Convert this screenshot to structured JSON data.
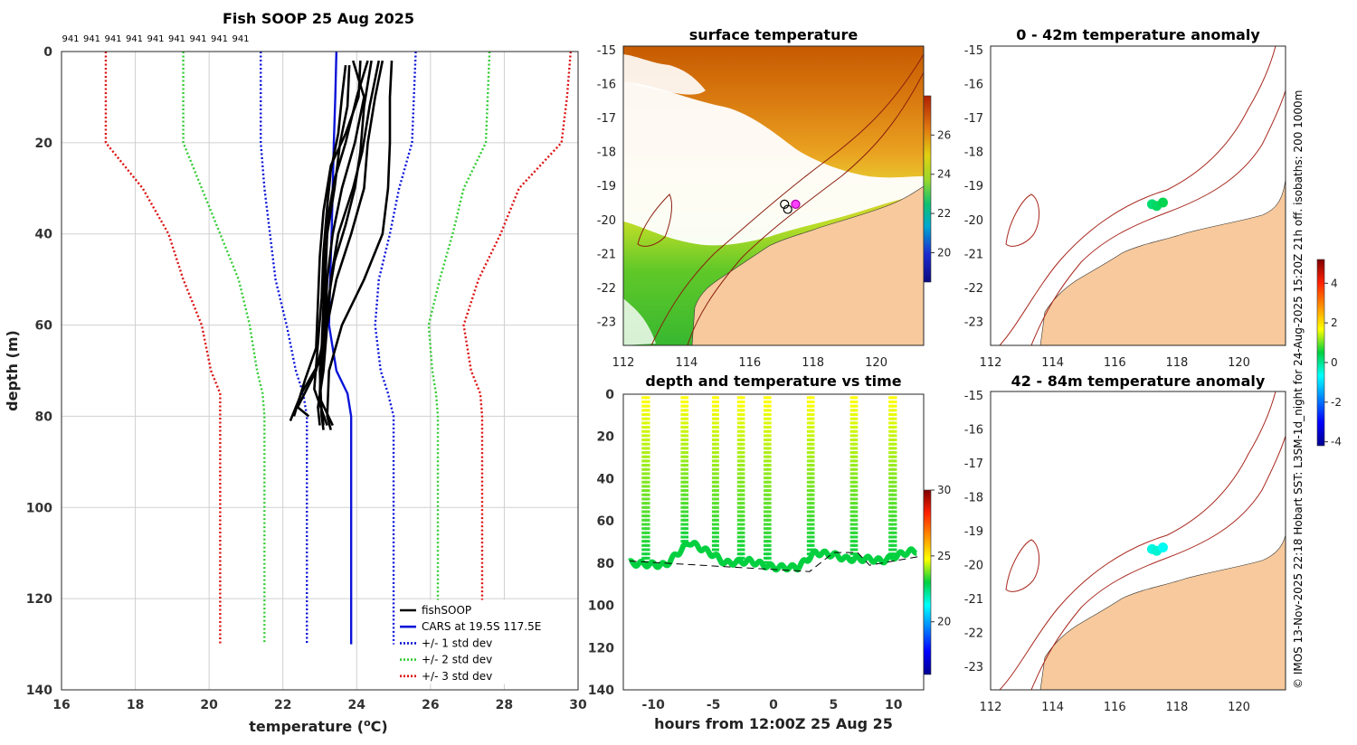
{
  "colors": {
    "fish": "#000000",
    "cars": "#0a14d8",
    "std1": "#0a14d8",
    "std2": "#33cc33",
    "std3": "#dd1111",
    "land": "#f7c99c",
    "isobath": "#a8281e"
  },
  "credit": "© IMOS 13-Nov-2025 22:18 Hobart SST: L3SM-1d_night for 24-Aug-2025  15:20Z 21h off. isobaths: 200  1000m",
  "chart_data": [
    {
      "id": "profile",
      "type": "line",
      "title": "Fish SOOP 25 Aug 2025",
      "xlabel": "temperature (",
      "xlabel_sup": "o",
      "xlabel_tail": "C)",
      "ylabel": "depth (m)",
      "xlim": [
        16,
        30
      ],
      "ylim": [
        0,
        140
      ],
      "y_reversed": true,
      "xticks": [
        16,
        18,
        20,
        22,
        24,
        26,
        28,
        30
      ],
      "yticks": [
        0,
        20,
        40,
        60,
        80,
        100,
        120,
        140
      ],
      "grid": true,
      "cast_ids": [
        "941",
        "941",
        "941",
        "941",
        "941",
        "941",
        "941",
        "941",
        "941"
      ],
      "legend_position": "bottom-right",
      "legend": [
        {
          "label": "fishSOOP",
          "style": "solid",
          "color": "#000000"
        },
        {
          "label": "CARS at 19.5S 117.5E",
          "style": "solid",
          "color": "#0a14d8"
        },
        {
          "label": "+/- 1 std dev",
          "style": "dotted",
          "color": "#0a14d8"
        },
        {
          "label": "+/- 2 std dev",
          "style": "dotted",
          "color": "#33cc33"
        },
        {
          "label": "+/- 3 std dev",
          "style": "dotted",
          "color": "#dd1111"
        }
      ],
      "depths": [
        0,
        10,
        20,
        30,
        40,
        50,
        60,
        70,
        75,
        80,
        130
      ],
      "cars_mean": [
        23.45,
        23.42,
        23.38,
        23.35,
        23.32,
        23.28,
        23.25,
        23.45,
        23.75,
        23.85,
        23.85
      ],
      "std_lines": [
        {
          "label": "-3",
          "color": "#dd1111",
          "values": [
            17.2,
            17.2,
            17.2,
            18.2,
            18.9,
            19.3,
            19.8,
            20.05,
            20.3,
            20.3,
            20.3
          ]
        },
        {
          "label": "+3",
          "color": "#dd1111",
          "values": [
            29.8,
            29.7,
            29.55,
            28.4,
            27.9,
            27.3,
            26.9,
            27.1,
            27.35,
            27.4,
            27.4
          ]
        },
        {
          "label": "-2",
          "color": "#33cc33",
          "values": [
            19.3,
            19.3,
            19.3,
            19.8,
            20.3,
            20.8,
            21.1,
            21.3,
            21.45,
            21.5,
            21.5
          ]
        },
        {
          "label": "+2",
          "color": "#33cc33",
          "values": [
            27.6,
            27.55,
            27.5,
            26.9,
            26.6,
            26.25,
            25.95,
            26.05,
            26.15,
            26.2,
            26.2
          ]
        },
        {
          "label": "-1",
          "color": "#0a14d8",
          "values": [
            21.4,
            21.4,
            21.4,
            21.5,
            21.65,
            21.8,
            22.1,
            22.35,
            22.55,
            22.65,
            22.65
          ]
        },
        {
          "label": "+1",
          "color": "#0a14d8",
          "values": [
            25.6,
            25.55,
            25.5,
            25.15,
            24.9,
            24.6,
            24.5,
            24.65,
            24.85,
            25.0,
            25.0
          ]
        }
      ],
      "fish_profiles": [
        {
          "depths": [
            2,
            10,
            20,
            30,
            40,
            50,
            60,
            70,
            80,
            83
          ],
          "temps": [
            24.95,
            24.9,
            24.9,
            24.85,
            24.7,
            24.2,
            23.6,
            23.25,
            23.2,
            23.3
          ]
        },
        {
          "depths": [
            2,
            10,
            20,
            28,
            35,
            45,
            55,
            65,
            75,
            82
          ],
          "temps": [
            24.3,
            24.0,
            23.7,
            23.4,
            23.25,
            23.15,
            23.1,
            23.05,
            23.0,
            23.1
          ]
        },
        {
          "depths": [
            2,
            12,
            22,
            30,
            40,
            50,
            60,
            70,
            78,
            82
          ],
          "temps": [
            24.6,
            24.35,
            24.15,
            23.9,
            23.5,
            23.3,
            23.2,
            23.1,
            22.95,
            23.0
          ]
        },
        {
          "depths": [
            3,
            12,
            20,
            30,
            40,
            50,
            60,
            70,
            80,
            83
          ],
          "temps": [
            23.8,
            23.75,
            23.55,
            23.4,
            23.2,
            23.15,
            23.1,
            23.0,
            23.05,
            23.1
          ]
        },
        {
          "depths": [
            2,
            10,
            18,
            25,
            35,
            45,
            55,
            65,
            72,
            80
          ],
          "temps": [
            24.1,
            24.05,
            23.7,
            23.3,
            23.1,
            23.0,
            22.95,
            22.9,
            22.6,
            22.3
          ]
        },
        {
          "depths": [
            2,
            10,
            20,
            30,
            40,
            50,
            60,
            68,
            75,
            81
          ],
          "temps": [
            23.9,
            24.2,
            23.95,
            23.6,
            23.35,
            23.2,
            23.15,
            23.0,
            22.5,
            22.2
          ]
        },
        {
          "depths": [
            3,
            10,
            18,
            26,
            34,
            44,
            54,
            64,
            74,
            82
          ],
          "temps": [
            23.7,
            23.6,
            23.5,
            23.3,
            23.2,
            23.1,
            23.05,
            22.95,
            22.85,
            23.2
          ]
        },
        {
          "depths": [
            2,
            12,
            22,
            30,
            38,
            46,
            56,
            66,
            76,
            82
          ],
          "temps": [
            24.4,
            24.2,
            24.1,
            23.95,
            23.7,
            23.4,
            23.2,
            23.1,
            23.0,
            23.35
          ]
        },
        {
          "depths": [
            2,
            10,
            20,
            30,
            40,
            50,
            60,
            70,
            78,
            80
          ],
          "temps": [
            24.7,
            24.5,
            24.3,
            24.2,
            23.85,
            23.45,
            23.2,
            22.9,
            22.4,
            22.7
          ]
        }
      ]
    },
    {
      "id": "sst",
      "type": "heatmap",
      "title": "surface temperature",
      "xlim": [
        112,
        121.5
      ],
      "ylim": [
        -23.7,
        -14.9
      ],
      "xticks": [
        112,
        114,
        116,
        118,
        120
      ],
      "yticks": [
        -15,
        -16,
        -17,
        -18,
        -19,
        -20,
        -21,
        -22,
        -23
      ],
      "colorbar": {
        "min": 18.5,
        "max": 28,
        "ticks": [
          20,
          22,
          24,
          26
        ]
      },
      "cast_markers": [
        {
          "lon": 117.1,
          "lat": -19.55
        },
        {
          "lon": 117.2,
          "lat": -19.7
        },
        {
          "lon": 117.45,
          "lat": -19.55
        }
      ]
    },
    {
      "id": "timeseries",
      "type": "scatter",
      "title": "depth and temperature vs time",
      "xlabel": "hours from 12:00Z 25 Aug 25",
      "xlim": [
        -12.5,
        12.5
      ],
      "ylim": [
        0,
        140
      ],
      "y_reversed": true,
      "xticks": [
        -10,
        -5,
        0,
        5,
        10
      ],
      "yticks": [
        0,
        20,
        40,
        60,
        80,
        100,
        120,
        140
      ],
      "colorbar": {
        "min": 16,
        "max": 30,
        "ticks": [
          20,
          25,
          30
        ]
      },
      "dive_hours": [
        -10.75,
        -10.5,
        -7.5,
        -7.3,
        -4.9,
        -4.75,
        -2.8,
        -2.6,
        -0.6,
        -0.4,
        3.0,
        3.2,
        6.6,
        6.8,
        9.8,
        10.05
      ],
      "bottom_depth": [
        [
          -12,
          80
        ],
        [
          -9,
          81
        ],
        [
          -7,
          70
        ],
        [
          -6,
          73
        ],
        [
          -5,
          76
        ],
        [
          -4,
          80
        ],
        [
          -2,
          79
        ],
        [
          0,
          82
        ],
        [
          2,
          82
        ],
        [
          3.5,
          75
        ],
        [
          5,
          76
        ],
        [
          6,
          78
        ],
        [
          8,
          78
        ],
        [
          9,
          79
        ],
        [
          11,
          75
        ],
        [
          12,
          74
        ]
      ],
      "seafloor_line": [
        [
          -12,
          79
        ],
        [
          3,
          84
        ],
        [
          5,
          75
        ],
        [
          7,
          75
        ],
        [
          8,
          81
        ],
        [
          12,
          77
        ]
      ]
    },
    {
      "id": "anom_upper",
      "type": "scatter",
      "title": "0 - 42m temperature anomaly",
      "xlim": [
        112,
        121.5
      ],
      "ylim": [
        -23.7,
        -14.9
      ],
      "xticks": [
        112,
        114,
        116,
        118,
        120
      ],
      "yticks": [
        -15,
        -16,
        -17,
        -18,
        -19,
        -20,
        -21,
        -22,
        -23
      ],
      "points": [
        {
          "lon": 117.2,
          "lat": -19.55,
          "anom": 0.2
        },
        {
          "lon": 117.35,
          "lat": -19.6,
          "anom": 0.3
        },
        {
          "lon": 117.55,
          "lat": -19.5,
          "anom": 0.4
        }
      ]
    },
    {
      "id": "anom_lower",
      "type": "scatter",
      "title": "42 - 84m temperature anomaly",
      "xlim": [
        112,
        121.5
      ],
      "ylim": [
        -23.7,
        -14.9
      ],
      "xticks": [
        112,
        114,
        116,
        118,
        120
      ],
      "yticks": [
        -15,
        -16,
        -17,
        -18,
        -19,
        -20,
        -21,
        -22,
        -23
      ],
      "points": [
        {
          "lon": 117.2,
          "lat": -19.55,
          "anom": -0.5
        },
        {
          "lon": 117.35,
          "lat": -19.6,
          "anom": -0.4
        },
        {
          "lon": 117.55,
          "lat": -19.5,
          "anom": -0.6
        }
      ]
    },
    {
      "id": "anom_colorbar",
      "type": "heatmap",
      "colorbar": {
        "min": -4.2,
        "max": 5.2,
        "ticks": [
          4,
          2,
          0,
          -2,
          -4
        ]
      }
    }
  ]
}
